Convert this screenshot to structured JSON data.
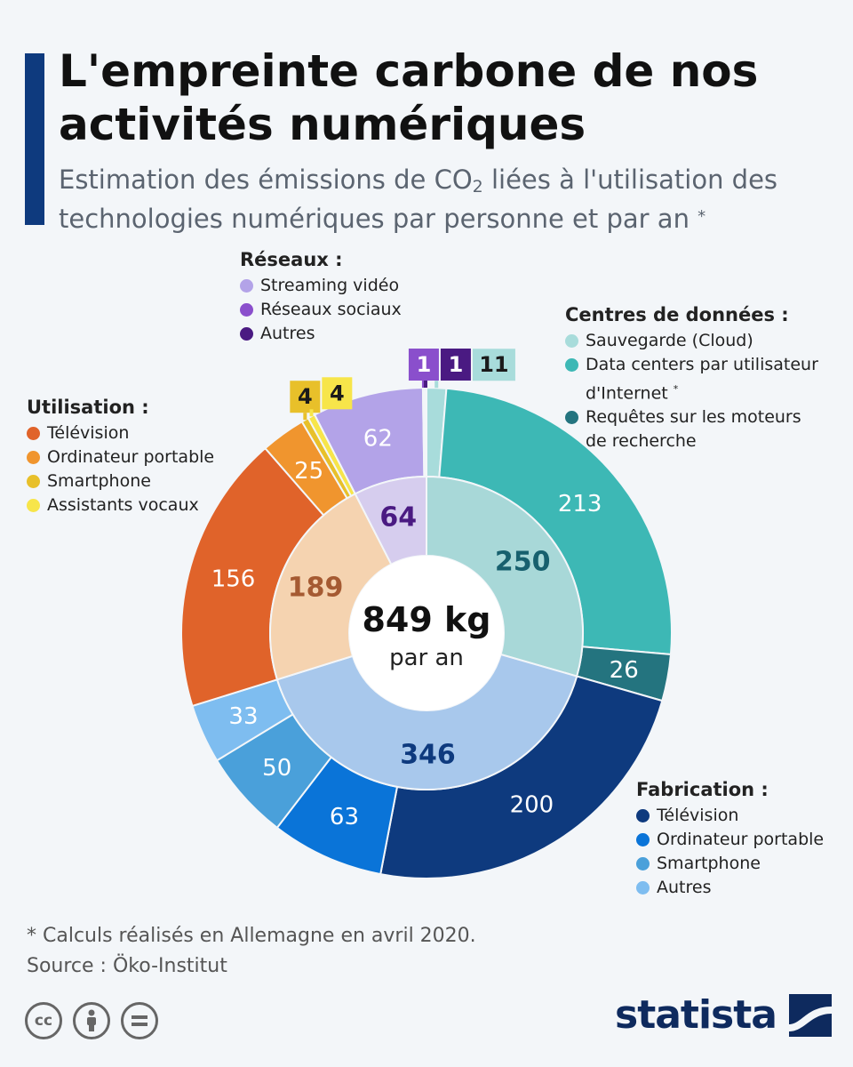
{
  "header": {
    "title": "L'empreinte carbone de nos activités numériques",
    "subtitle_before": "Estimation des émissions de CO",
    "subtitle_sub": "2",
    "subtitle_after": " liées à l'utilisation des technologies numériques par personne et par an",
    "subtitle_asterisk": "*"
  },
  "center": {
    "value": "849 kg",
    "unit": "par an"
  },
  "legends": {
    "reseaux": {
      "title": "Réseaux :",
      "items": [
        "Streaming vidéo",
        "Réseaux sociaux",
        "Autres"
      ]
    },
    "centres": {
      "title": "Centres de données :",
      "items": [
        "Sauvegarde (Cloud)",
        "Data centers par utilisateur d'Internet",
        "Requêtes sur les moteurs de recherche"
      ],
      "asterisk": "*"
    },
    "utilisation": {
      "title": "Utilisation :",
      "items": [
        "Télévision",
        "Ordinateur portable",
        "Smartphone",
        "Assistants vocaux"
      ]
    },
    "fabrication": {
      "title": "Fabrication :",
      "items": [
        "Télévision",
        "Ordinateur portable",
        "Smartphone",
        "Autres"
      ]
    }
  },
  "chart_data": {
    "type": "pie",
    "subtype": "sunburst",
    "total": 849,
    "unit": "kg",
    "inner": [
      {
        "name": "Centres de données",
        "value": 250,
        "color": "#a8d8d8",
        "text_color": "#17606e"
      },
      {
        "name": "Fabrication",
        "value": 346,
        "color": "#a8c8ec",
        "text_color": "#0e3a7e"
      },
      {
        "name": "Utilisation",
        "value": 189,
        "color": "#f5d3b0",
        "text_color": "#a55a32"
      },
      {
        "name": "Réseaux",
        "value": 64,
        "color": "#d6cdee",
        "text_color": "#4a1a82"
      }
    ],
    "outer": [
      {
        "group": "Centres de données",
        "name": "Sauvegarde (Cloud)",
        "value": 11,
        "color": "#a8dcdb",
        "label_style": "flag"
      },
      {
        "group": "Centres de données",
        "name": "Data centers par utilisateur d'Internet",
        "value": 213,
        "color": "#3db8b5"
      },
      {
        "group": "Centres de données",
        "name": "Requêtes sur les moteurs de recherche",
        "value": 26,
        "color": "#24747f"
      },
      {
        "group": "Fabrication",
        "name": "Télévision",
        "value": 200,
        "color": "#0e3a7e"
      },
      {
        "group": "Fabrication",
        "name": "Ordinateur portable",
        "value": 63,
        "color": "#0a74d8"
      },
      {
        "group": "Fabrication",
        "name": "Smartphone",
        "value": 50,
        "color": "#4aa0da"
      },
      {
        "group": "Fabrication",
        "name": "Autres",
        "value": 33,
        "color": "#7ebdf0"
      },
      {
        "group": "Utilisation",
        "name": "Télévision",
        "value": 156,
        "color": "#e0632a"
      },
      {
        "group": "Utilisation",
        "name": "Ordinateur portable",
        "value": 25,
        "color": "#f0952e"
      },
      {
        "group": "Utilisation",
        "name": "Smartphone",
        "value": 4,
        "color": "#e8c02a",
        "label_style": "flag"
      },
      {
        "group": "Utilisation",
        "name": "Assistants vocaux",
        "value": 4,
        "color": "#f7e54a",
        "label_style": "flag"
      },
      {
        "group": "Réseaux",
        "name": "Streaming vidéo",
        "value": 62,
        "color": "#b3a3e8"
      },
      {
        "group": "Réseaux",
        "name": "Réseaux sociaux",
        "value": 1,
        "color": "#8a4fcc",
        "label_style": "flag"
      },
      {
        "group": "Réseaux",
        "name": "Autres",
        "value": 1,
        "color": "#4a1a82",
        "label_style": "flag"
      }
    ]
  },
  "footer": {
    "note": "* Calculs réalisés en Allemagne en avril 2020.",
    "source": "Source : Öko-Institut",
    "license_icons": [
      "cc-icon",
      "attribution-icon",
      "no-derivatives-icon"
    ],
    "brand": "statista"
  }
}
